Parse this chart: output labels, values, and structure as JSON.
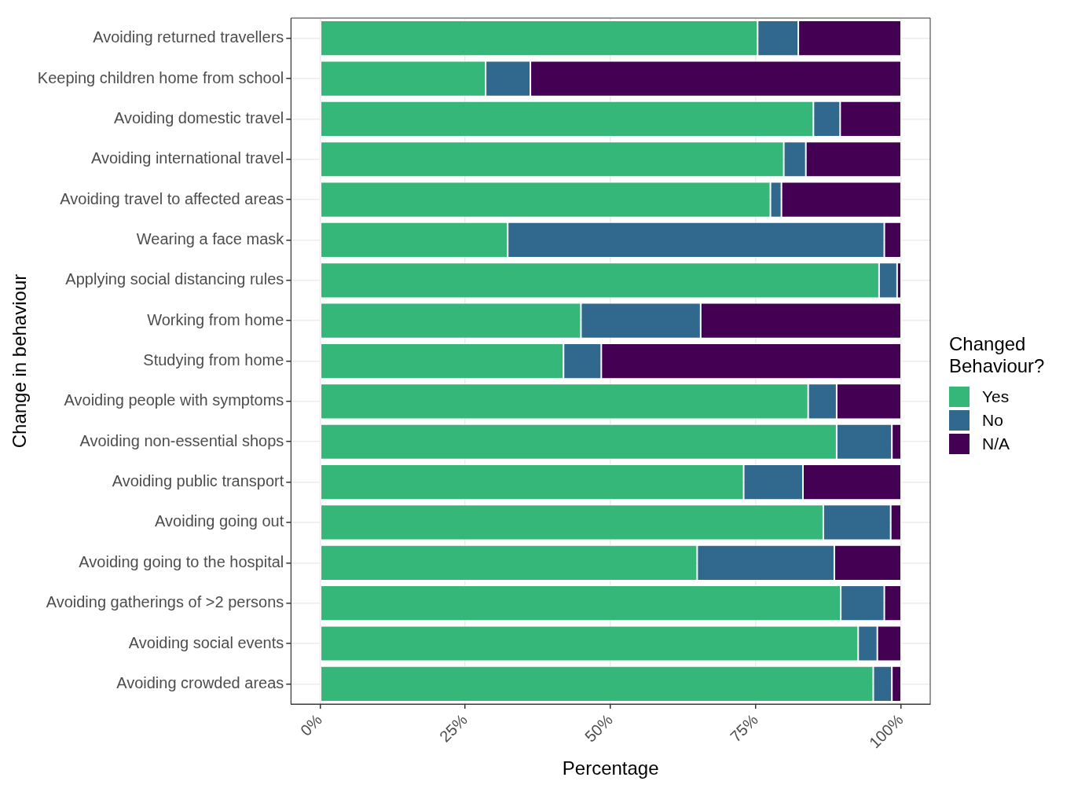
{
  "chart_data": {
    "type": "bar",
    "orientation": "horizontal",
    "stacked": true,
    "xlabel": "Percentage",
    "ylabel": "Change in behaviour",
    "legend_title": "Changed Behaviour?",
    "legend": "right",
    "grid": true,
    "categories": [
      "Avoiding returned travellers",
      "Keeping children home from school",
      "Avoiding domestic travel",
      "Avoiding international travel",
      "Avoiding travel to affected areas",
      "Wearing a face mask",
      "Applying social distancing rules",
      "Working from home",
      "Studying from home",
      "Avoiding people with symptoms",
      "Avoiding non-essential shops",
      "Avoiding public transport",
      "Avoiding going out",
      "Avoiding going to the hospital",
      "Avoiding gatherings of >2 persons",
      "Avoiding social events",
      "Avoiding crowded areas"
    ],
    "xlim": [
      -5,
      105
    ],
    "xticks": [
      {
        "value": 0,
        "label": "0%"
      },
      {
        "value": 25,
        "label": "25%"
      },
      {
        "value": 50,
        "label": "50%"
      },
      {
        "value": 75,
        "label": "75%"
      },
      {
        "value": 100,
        "label": "100%"
      }
    ],
    "series": [
      {
        "name": "Yes",
        "color": "#35b779",
        "values": [
          75.3,
          28.5,
          84.9,
          79.8,
          77.5,
          32.3,
          96.2,
          44.9,
          41.9,
          84.0,
          88.9,
          72.9,
          86.6,
          64.9,
          89.6,
          92.6,
          95.2
        ]
      },
      {
        "name": "No",
        "color": "#31688e",
        "values": [
          7.0,
          7.7,
          4.6,
          3.8,
          1.9,
          64.8,
          3.1,
          20.6,
          6.5,
          4.9,
          9.5,
          10.2,
          11.6,
          23.6,
          7.5,
          3.3,
          3.2
        ]
      },
      {
        "name": "N/A",
        "color": "#440154",
        "values": [
          17.7,
          63.8,
          10.5,
          16.4,
          20.6,
          2.9,
          0.7,
          34.5,
          51.6,
          11.1,
          1.6,
          16.9,
          1.8,
          11.5,
          2.9,
          4.1,
          1.6
        ]
      }
    ]
  }
}
